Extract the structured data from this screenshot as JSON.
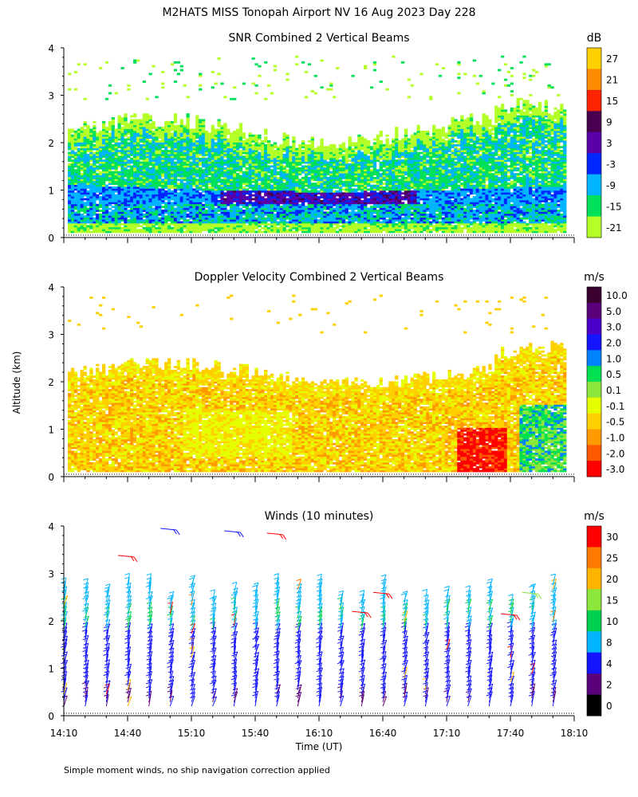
{
  "figure": {
    "main_title": "M2HATS MISS Tonopah Airport NV  16 Aug 2023 Day 228",
    "ylabel": "Altitude (km)",
    "xlabel": "Time (UT)",
    "footnote": "Simple moment winds, no ship navigation correction applied"
  },
  "chart_data": [
    {
      "type": "heatmap",
      "title": "SNR Combined 2 Vertical Beams",
      "units": "dB",
      "xlim": [
        "14:10",
        "18:10"
      ],
      "ylim": [
        0,
        4
      ],
      "yticks": [
        "0",
        "1",
        "2",
        "3",
        "4"
      ],
      "colorbar": {
        "ticks": [
          "27",
          "21",
          "15",
          "9",
          "3",
          "-3",
          "-9",
          "-15",
          "-21"
        ],
        "colors": [
          "#ffd000",
          "#ff8c00",
          "#ff2400",
          "#4a0050",
          "#5a00a8",
          "#0026ff",
          "#00b4ff",
          "#00e05a",
          "#b4ff28"
        ]
      },
      "layers_approx": [
        {
          "altitude_km": [
            0.2,
            0.9
          ],
          "dB": -12
        },
        {
          "altitude_km": [
            0.7,
            1.0
          ],
          "dB": 3
        },
        {
          "altitude_km": [
            1.0,
            1.8
          ],
          "dB": -9
        },
        {
          "altitude_km": [
            1.8,
            2.3
          ],
          "dB": -18
        }
      ]
    },
    {
      "type": "heatmap",
      "title": "Doppler Velocity Combined 2 Vertical Beams",
      "units": "m/s",
      "xlim": [
        "14:10",
        "18:10"
      ],
      "ylim": [
        0,
        4
      ],
      "yticks": [
        "0",
        "1",
        "2",
        "3",
        "4"
      ],
      "colorbar": {
        "ticks": [
          "10.0",
          "5.0",
          "3.0",
          "2.0",
          "1.0",
          "0.5",
          "0.1",
          "-0.1",
          "-0.5",
          "-1.0",
          "-2.0",
          "-3.0"
        ],
        "colors": [
          "#3a0030",
          "#5a007a",
          "#4a00c8",
          "#1414ff",
          "#0082ff",
          "#00e050",
          "#8ce63c",
          "#e6ff00",
          "#ffd000",
          "#ff9a00",
          "#ff5a00",
          "#ff0000"
        ]
      },
      "regions_approx": [
        {
          "altitude_km": [
            0.2,
            2.0
          ],
          "velocity_ms": -0.5
        },
        {
          "time": [
            "17:20",
            "17:40"
          ],
          "altitude_km": [
            0.2,
            1.0
          ],
          "velocity_ms": -2.0
        },
        {
          "time": [
            "17:50",
            "18:05"
          ],
          "altitude_km": [
            0.2,
            1.5
          ],
          "velocity_ms": 1.0
        }
      ]
    },
    {
      "type": "scatter",
      "title": "Winds (10 minutes)",
      "units": "m/s",
      "xlim": [
        "14:10",
        "18:10"
      ],
      "ylim": [
        0,
        4
      ],
      "yticks": [
        "0",
        "1",
        "2",
        "3",
        "4"
      ],
      "xticks": [
        "14:10",
        "14:40",
        "15:10",
        "15:40",
        "16:10",
        "16:40",
        "17:10",
        "17:40",
        "18:10"
      ],
      "profile_times": [
        "14:10",
        "14:20",
        "14:30",
        "14:40",
        "14:50",
        "15:00",
        "15:10",
        "15:20",
        "15:30",
        "15:40",
        "15:50",
        "16:00",
        "16:10",
        "16:20",
        "16:30",
        "16:40",
        "16:50",
        "17:00",
        "17:10",
        "17:20",
        "17:30",
        "17:40",
        "17:50",
        "18:00"
      ],
      "colorbar": {
        "ticks": [
          "30",
          "25",
          "20",
          "15",
          "10",
          "8",
          "4",
          "2",
          "0"
        ],
        "colors": [
          "#ff0000",
          "#ff7a00",
          "#ffb400",
          "#8ce63c",
          "#00d050",
          "#00b4ff",
          "#1414ff",
          "#5a007a",
          "#000000"
        ]
      },
      "wind_speed_approx_ms": {
        "below_2km": 5,
        "2_to_2.7km": 10
      }
    }
  ]
}
